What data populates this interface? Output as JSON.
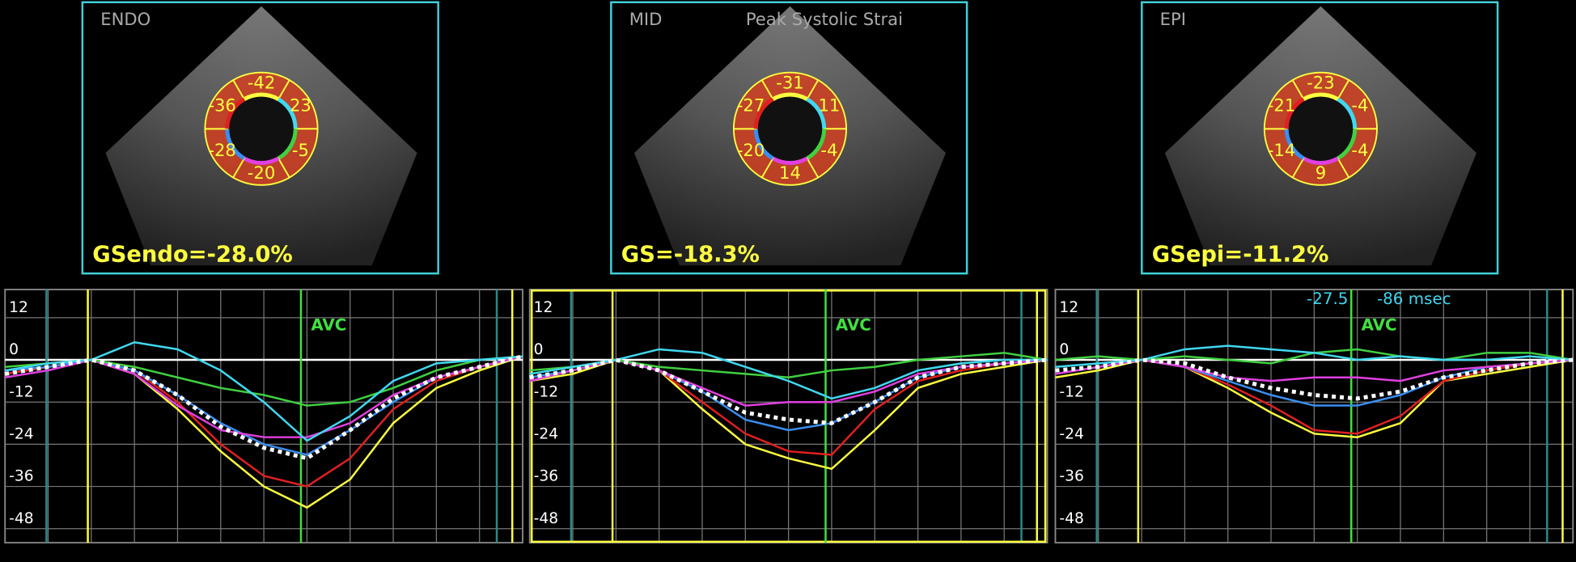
{
  "views": [
    {
      "label": "ENDO",
      "segments": [
        "-42",
        "23",
        "-5",
        "-20",
        "-28",
        "-36"
      ],
      "global_strain": "GSendo=-28.0%"
    },
    {
      "label": "MID",
      "sublabel": "Peak Systolic Strai",
      "segments": [
        "-31",
        "11",
        "-4",
        "14",
        "-20",
        "-27"
      ],
      "global_strain": "GS=-18.3%"
    },
    {
      "label": "EPI",
      "segments": [
        "-23",
        "-4",
        "-4",
        "9",
        "-14",
        "-21"
      ],
      "global_strain": "GSepi=-11.2%"
    }
  ],
  "chart_data": [
    {
      "type": "line",
      "x": [
        0,
        1,
        2,
        3,
        4,
        5,
        6,
        7,
        8,
        9,
        10,
        11,
        12
      ],
      "xlim": [
        0,
        12
      ],
      "ylim": [
        -52,
        20
      ],
      "yticks": [
        12,
        0,
        -12,
        -24,
        -36,
        -48
      ],
      "grid": true,
      "annotations": [
        {
          "text": "AVC",
          "x": 6.86
        }
      ],
      "series": [
        {
          "color": "#ffff40",
          "values": [
            -4,
            -2,
            0,
            -4,
            -14,
            -26,
            -36,
            -42,
            -34,
            -18,
            -8,
            -3,
            1
          ]
        },
        {
          "color": "#e02020",
          "values": [
            -4,
            -2,
            0,
            -3,
            -12,
            -24,
            -33,
            -36,
            -28,
            -14,
            -6,
            -2,
            1
          ]
        },
        {
          "color": "#3a8ef0",
          "values": [
            -3,
            -2,
            0,
            -3,
            -10,
            -18,
            -24,
            -27,
            -20,
            -12,
            -5,
            -2,
            1
          ]
        },
        {
          "color": "#e040e0",
          "values": [
            -5,
            -3,
            0,
            -4,
            -13,
            -20,
            -22,
            -22,
            -18,
            -10,
            -5,
            -2,
            1
          ]
        },
        {
          "color": "#40d040",
          "values": [
            -2,
            -1,
            0,
            -2,
            -5,
            -8,
            -10,
            -13,
            -12,
            -8,
            -3,
            0,
            1
          ]
        },
        {
          "color": "#40d8f0",
          "values": [
            -3,
            -1,
            0,
            5,
            3,
            -3,
            -12,
            -23,
            -16,
            -6,
            -1,
            0,
            1
          ]
        },
        {
          "color": "#ffffff",
          "style": "dotted",
          "values": [
            -4,
            -2,
            0,
            -3,
            -10,
            -19,
            -25,
            -28,
            -20,
            -11,
            -5,
            -2,
            1
          ]
        }
      ]
    },
    {
      "type": "line",
      "x": [
        0,
        1,
        2,
        3,
        4,
        5,
        6,
        7,
        8,
        9,
        10,
        11,
        12
      ],
      "xlim": [
        0,
        12
      ],
      "ylim": [
        -52,
        20
      ],
      "yticks": [
        12,
        0,
        -12,
        -24,
        -36,
        -48
      ],
      "grid": true,
      "annotations": [
        {
          "text": "AVC",
          "x": 6.86
        }
      ],
      "series": [
        {
          "color": "#ffff40",
          "values": [
            -6,
            -4,
            0,
            -3,
            -14,
            -24,
            -28,
            -31,
            -20,
            -8,
            -4,
            -2,
            0
          ]
        },
        {
          "color": "#e02020",
          "values": [
            -6,
            -3,
            0,
            -3,
            -12,
            -21,
            -26,
            -27,
            -14,
            -6,
            -3,
            -1,
            0
          ]
        },
        {
          "color": "#3a8ef0",
          "values": [
            -5,
            -3,
            0,
            -3,
            -9,
            -17,
            -20,
            -18,
            -12,
            -5,
            -2,
            -1,
            0
          ]
        },
        {
          "color": "#e040e0",
          "values": [
            -6,
            -3,
            0,
            -3,
            -8,
            -13,
            -12,
            -12,
            -9,
            -4,
            -2,
            -1,
            0
          ]
        },
        {
          "color": "#40d040",
          "values": [
            -3,
            -2,
            0,
            -2,
            -3,
            -4,
            -5,
            -3,
            -2,
            0,
            1,
            2,
            0
          ]
        },
        {
          "color": "#40d8f0",
          "values": [
            -4,
            -2,
            0,
            3,
            2,
            -2,
            -6,
            -11,
            -8,
            -3,
            -1,
            0,
            0
          ]
        },
        {
          "color": "#ffffff",
          "style": "dotted",
          "values": [
            -5,
            -3,
            0,
            -3,
            -9,
            -15,
            -17,
            -18,
            -12,
            -5,
            -2,
            -1,
            0
          ]
        }
      ]
    },
    {
      "type": "line",
      "x": [
        0,
        1,
        2,
        3,
        4,
        5,
        6,
        7,
        8,
        9,
        10,
        11,
        12
      ],
      "xlim": [
        0,
        12
      ],
      "ylim": [
        -52,
        20
      ],
      "yticks": [
        12,
        0,
        -12,
        -24,
        -36,
        -48
      ],
      "grid": true,
      "annotations": [
        {
          "text": "AVC",
          "x": 6.86
        }
      ],
      "readout": [
        "-27.5",
        "-86 msec"
      ],
      "series": [
        {
          "color": "#ffff40",
          "values": [
            -5,
            -3,
            0,
            -2,
            -8,
            -15,
            -21,
            -22,
            -18,
            -6,
            -4,
            -2,
            0
          ]
        },
        {
          "color": "#e02020",
          "values": [
            -4,
            -2,
            0,
            -2,
            -7,
            -13,
            -20,
            -21,
            -16,
            -6,
            -3,
            -1,
            0
          ]
        },
        {
          "color": "#3a8ef0",
          "values": [
            -4,
            -2,
            0,
            -2,
            -6,
            -10,
            -13,
            -13,
            -10,
            -5,
            -2,
            -1,
            0
          ]
        },
        {
          "color": "#e040e0",
          "values": [
            -4,
            -2,
            0,
            -2,
            -5,
            -6,
            -5,
            -5,
            -6,
            -3,
            -2,
            -1,
            0
          ]
        },
        {
          "color": "#40d040",
          "values": [
            0,
            1,
            0,
            1,
            0,
            -1,
            2,
            3,
            1,
            0,
            2,
            2,
            0
          ]
        },
        {
          "color": "#40d8f0",
          "values": [
            -2,
            -1,
            0,
            3,
            4,
            3,
            2,
            0,
            1,
            0,
            0,
            1,
            0
          ]
        },
        {
          "color": "#ffffff",
          "style": "dotted",
          "values": [
            -3,
            -2,
            0,
            -1,
            -5,
            -8,
            -10,
            -11,
            -9,
            -5,
            -3,
            -1,
            0
          ]
        }
      ]
    }
  ]
}
